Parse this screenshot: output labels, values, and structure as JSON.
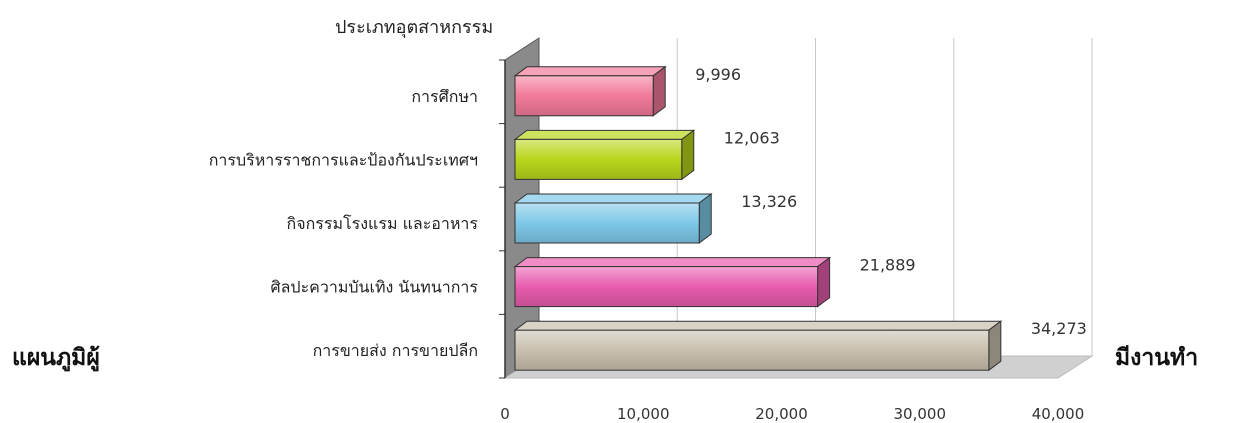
{
  "side_text": {
    "left": "แผนภูมิผู้",
    "right": "มีงานทำ"
  },
  "chart_data": {
    "type": "bar",
    "orientation": "horizontal",
    "title": "",
    "ylabel": "ประเภทอุตสาหกรรม",
    "xlabel": "",
    "categories": [
      "การศึกษา",
      "การบริหารราชการและป้องกันประเทศฯ",
      "กิจกรรมโรงแรม และอาหาร",
      "ศิลปะความบันเทิง นันทนาการ",
      "การขายส่ง การขายปลีก"
    ],
    "values": [
      9996,
      12063,
      13326,
      21889,
      34273
    ],
    "data_labels": [
      "9,996",
      "12,063",
      "13,326",
      "21,889",
      "34,273"
    ],
    "xlim": [
      0,
      40000
    ],
    "xticks": [
      0,
      10000,
      20000,
      30000,
      40000
    ],
    "xtick_labels": [
      "0",
      "10,000",
      "20,000",
      "30,000",
      "40,000"
    ],
    "grid": true,
    "style": "3d",
    "bar_colors": [
      "#f27a9a",
      "#b9d61c",
      "#7ec8e8",
      "#e85cae",
      "#c9c0ae"
    ]
  }
}
